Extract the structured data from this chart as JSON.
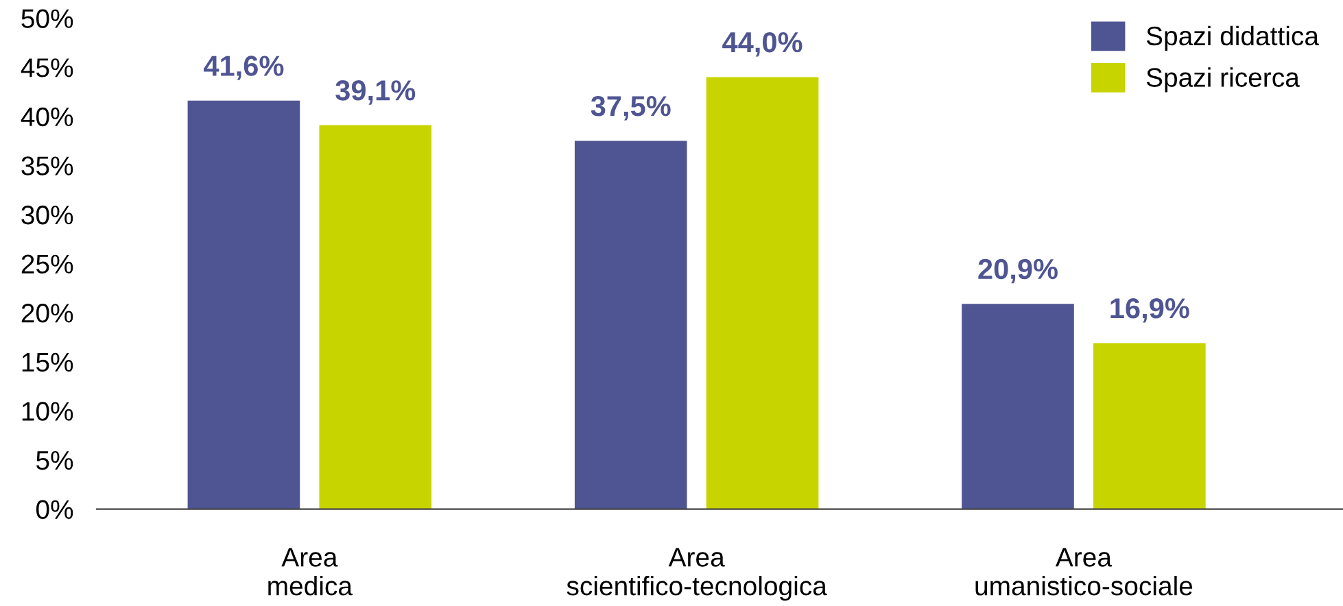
{
  "chart_data": {
    "type": "bar",
    "categories": [
      "Area\nmedica",
      "Area\nscientifico-tecnologica",
      "Area\numanistico-sociale"
    ],
    "series": [
      {
        "name": "Spazi didattica",
        "color": "#4f5592",
        "values": [
          41.6,
          37.5,
          20.9
        ],
        "value_labels": [
          "41,6%",
          "37,5%",
          "20,9%"
        ]
      },
      {
        "name": "Spazi ricerca",
        "color": "#c8d400",
        "values": [
          39.1,
          44.0,
          16.9
        ],
        "value_labels": [
          "39,1%",
          "44,0%",
          "16,9%"
        ]
      }
    ],
    "ylim": [
      0,
      50
    ],
    "yticks": [
      {
        "value": 0,
        "label": "0%"
      },
      {
        "value": 5,
        "label": "5%"
      },
      {
        "value": 10,
        "label": "10%"
      },
      {
        "value": 15,
        "label": "15%"
      },
      {
        "value": 20,
        "label": "20%"
      },
      {
        "value": 25,
        "label": "25%"
      },
      {
        "value": 30,
        "label": "30%"
      },
      {
        "value": 35,
        "label": "35%"
      },
      {
        "value": 40,
        "label": "40%"
      },
      {
        "value": 45,
        "label": "45%"
      },
      {
        "value": 50,
        "label": "50%"
      }
    ],
    "grid": false,
    "legend": "top right"
  }
}
